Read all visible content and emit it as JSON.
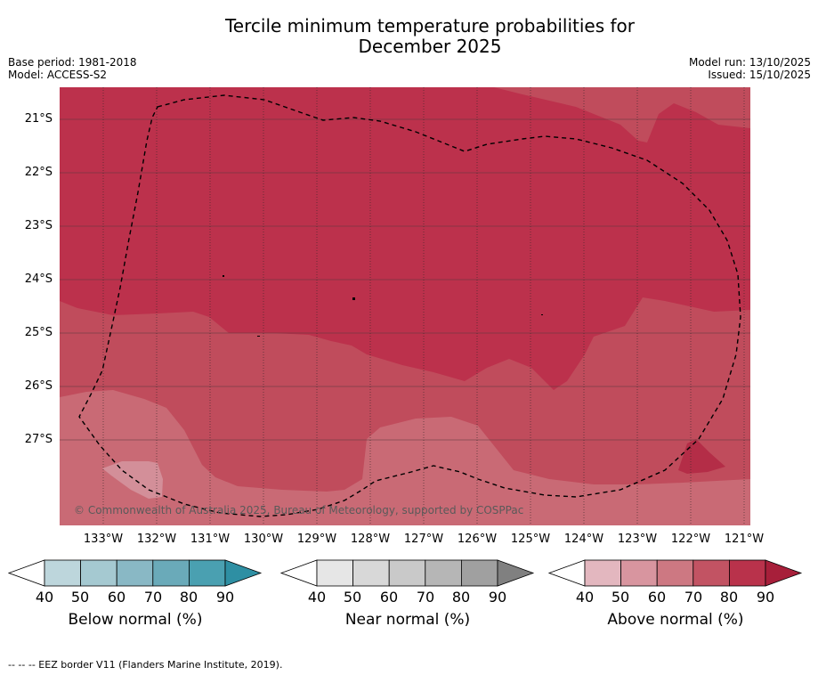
{
  "title_line1": "Tercile minimum temperature probabilities for",
  "title_line2": "December 2025",
  "base_period": "Base period: 1981-2018",
  "model": "Model: ACCESS-S2",
  "model_run": "Model run: 13/10/2025",
  "issued": "Issued: 15/10/2025",
  "copyright": "© Commonwealth of Australia 2025, Bureau of Meteorology, supported by COSPPac",
  "lat_labels": [
    "21°S",
    "22°S",
    "23°S",
    "24°S",
    "25°S",
    "26°S",
    "27°S"
  ],
  "lon_labels": [
    "133°W",
    "132°W",
    "131°W",
    "130°W",
    "129°W",
    "128°W",
    "127°W",
    "126°W",
    "125°W",
    "124°W",
    "123°W",
    "122°W",
    "121°W"
  ],
  "colorbars": [
    {
      "label": "Below normal (%)",
      "ticks": [
        "40",
        "50",
        "60",
        "70",
        "80",
        "90"
      ],
      "colors": [
        "#ffffff",
        "#bdd6dc",
        "#a5c9d1",
        "#89b8c5",
        "#6aaab9",
        "#4aa0b1",
        "#2e8fa3"
      ]
    },
    {
      "label": "Near normal (%)",
      "ticks": [
        "40",
        "50",
        "60",
        "70",
        "80",
        "90"
      ],
      "colors": [
        "#ffffff",
        "#e6e6e6",
        "#d8d8d8",
        "#c9c9c9",
        "#b6b6b6",
        "#a0a0a0",
        "#808080"
      ]
    },
    {
      "label": "Above normal (%)",
      "ticks": [
        "40",
        "50",
        "60",
        "70",
        "80",
        "90"
      ],
      "colors": [
        "#ffffff",
        "#e3b7bf",
        "#d8959f",
        "#cd7882",
        "#c25363",
        "#b9324b",
        "#a71f3a"
      ]
    }
  ],
  "footer": "--  --  -- EEZ border V11 (Flanders Marine Institute, 2019).",
  "colors": {
    "band_90": "#bc314c",
    "band_80": "#c04c5c",
    "band_70": "#c96a75",
    "band_60": "#d38f99",
    "grid": "#3a2a2a"
  }
}
